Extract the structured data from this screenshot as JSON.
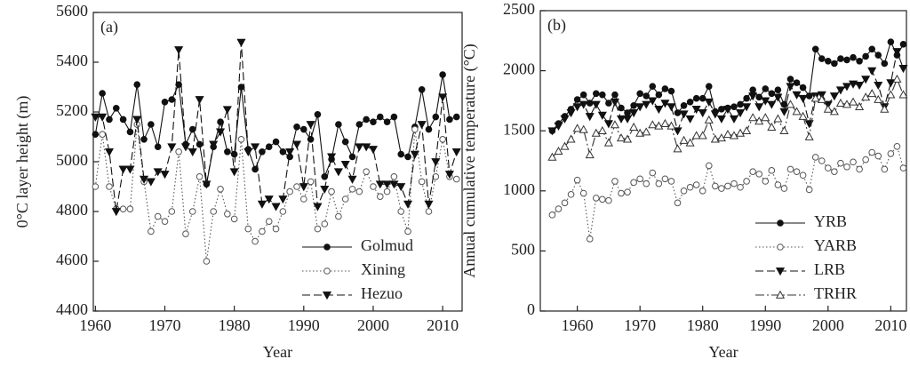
{
  "chart_data": [
    {
      "type": "line",
      "annotation": "(a)",
      "xlabel": "Year",
      "ylabel": "0°C layer height (m)",
      "x": [
        1960,
        1961,
        1962,
        1963,
        1964,
        1965,
        1966,
        1967,
        1968,
        1969,
        1970,
        1971,
        1972,
        1973,
        1974,
        1975,
        1976,
        1977,
        1978,
        1979,
        1980,
        1981,
        1982,
        1983,
        1984,
        1985,
        1986,
        1987,
        1988,
        1989,
        1990,
        1991,
        1992,
        1993,
        1994,
        1995,
        1996,
        1997,
        1998,
        1999,
        2000,
        2001,
        2002,
        2003,
        2004,
        2005,
        2006,
        2007,
        2008,
        2009,
        2010,
        2011,
        2012
      ],
      "series": [
        {
          "name": "Golmud",
          "color": "#111111",
          "marker": "circle-filled",
          "line_style": "solid",
          "values": [
            5110,
            5275,
            5170,
            5215,
            5170,
            5120,
            5310,
            5090,
            5150,
            5060,
            5240,
            5250,
            5310,
            5070,
            5130,
            5070,
            4910,
            5060,
            5160,
            5040,
            5030,
            5300,
            5050,
            4970,
            5040,
            5060,
            5080,
            5040,
            5020,
            5140,
            5130,
            5090,
            5190,
            4940,
            5010,
            5150,
            5080,
            5020,
            5150,
            5170,
            5160,
            5180,
            5160,
            5180,
            5030,
            5020,
            5140,
            5290,
            5130,
            5180,
            5350,
            5170,
            5180
          ]
        },
        {
          "name": "Xining",
          "color": "#555555",
          "marker": "circle-open",
          "line_style": "dotted",
          "values": [
            4900,
            5110,
            4900,
            4810,
            4810,
            4810,
            5150,
            4920,
            4720,
            4780,
            4760,
            4800,
            5040,
            4710,
            4800,
            4940,
            4600,
            4800,
            4890,
            4790,
            4770,
            5090,
            4730,
            4680,
            4720,
            4760,
            4730,
            4800,
            4880,
            4900,
            4850,
            4920,
            4730,
            4750,
            4880,
            4780,
            4850,
            4890,
            4880,
            4960,
            4900,
            4860,
            4880,
            4940,
            4800,
            4720,
            5130,
            4920,
            4800,
            4940,
            5090,
            4940,
            4930
          ]
        },
        {
          "name": "Hezuo",
          "color": "#111111",
          "marker": "triangle-down-filled",
          "line_style": "dashed",
          "values": [
            5180,
            5180,
            5040,
            4800,
            4970,
            4970,
            5170,
            4930,
            4920,
            4960,
            4950,
            5060,
            5450,
            5060,
            5040,
            5250,
            4910,
            5070,
            5120,
            5210,
            4960,
            5480,
            5040,
            5060,
            4830,
            4850,
            4820,
            4850,
            5040,
            5070,
            4900,
            5150,
            4820,
            4890,
            5020,
            4960,
            4990,
            4930,
            5060,
            5060,
            5050,
            4910,
            4910,
            4910,
            4900,
            4830,
            5030,
            5150,
            4830,
            5000,
            5260,
            4950,
            5040
          ]
        }
      ],
      "xlim": [
        1959.7,
        2012.8
      ],
      "ylim": [
        4400,
        5600
      ],
      "xticks": [
        1960,
        1970,
        1980,
        1990,
        2000,
        2010
      ],
      "yticks": [
        4400,
        4600,
        4800,
        5000,
        5200,
        5400,
        5600
      ],
      "legend": "lower right"
    },
    {
      "type": "line",
      "annotation": "(b)",
      "xlabel": "Year",
      "ylabel": "Annual cumulative temperature (°C)",
      "x": [
        1956,
        1957,
        1958,
        1959,
        1960,
        1961,
        1962,
        1963,
        1964,
        1965,
        1966,
        1967,
        1968,
        1969,
        1970,
        1971,
        1972,
        1973,
        1974,
        1975,
        1976,
        1977,
        1978,
        1979,
        1980,
        1981,
        1982,
        1983,
        1984,
        1985,
        1986,
        1987,
        1988,
        1989,
        1990,
        1991,
        1992,
        1993,
        1994,
        1995,
        1996,
        1997,
        1998,
        1999,
        2000,
        2001,
        2002,
        2003,
        2004,
        2005,
        2006,
        2007,
        2008,
        2009,
        2010,
        2011,
        2012
      ],
      "series": [
        {
          "name": "YRB",
          "color": "#111111",
          "marker": "circle-filled",
          "line_style": "solid",
          "values": [
            1500,
            1560,
            1620,
            1680,
            1760,
            1800,
            1730,
            1810,
            1800,
            1730,
            1800,
            1690,
            1650,
            1710,
            1810,
            1790,
            1870,
            1800,
            1850,
            1830,
            1650,
            1710,
            1740,
            1770,
            1770,
            1870,
            1660,
            1680,
            1690,
            1700,
            1720,
            1770,
            1840,
            1780,
            1850,
            1810,
            1840,
            1720,
            1930,
            1900,
            1860,
            1790,
            2180,
            2100,
            2080,
            2060,
            2100,
            2090,
            2110,
            2080,
            2120,
            2180,
            2130,
            2060,
            2240,
            2130,
            2220
          ]
        },
        {
          "name": "YARB",
          "color": "#555555",
          "marker": "circle-open",
          "line_style": "dotted",
          "values": [
            800,
            850,
            900,
            970,
            1090,
            980,
            600,
            940,
            930,
            920,
            1080,
            980,
            990,
            1070,
            1100,
            1060,
            1150,
            1060,
            1100,
            1080,
            900,
            1000,
            1030,
            1050,
            1000,
            1210,
            1040,
            1020,
            1040,
            1060,
            1030,
            1080,
            1160,
            1140,
            1080,
            1170,
            1050,
            1020,
            1180,
            1160,
            1130,
            1010,
            1280,
            1250,
            1190,
            1160,
            1230,
            1200,
            1240,
            1180,
            1260,
            1320,
            1290,
            1180,
            1310,
            1370,
            1190
          ]
        },
        {
          "name": "LRB",
          "color": "#111111",
          "marker": "triangle-down-filled",
          "line_style": "dashed",
          "values": [
            1500,
            1540,
            1600,
            1650,
            1700,
            1720,
            1620,
            1720,
            1630,
            1560,
            1740,
            1600,
            1600,
            1650,
            1700,
            1720,
            1750,
            1680,
            1730,
            1700,
            1500,
            1640,
            1600,
            1680,
            1650,
            1740,
            1640,
            1600,
            1680,
            1600,
            1650,
            1700,
            1790,
            1700,
            1750,
            1720,
            1780,
            1660,
            1870,
            1800,
            1770,
            1560,
            1790,
            1800,
            1720,
            1790,
            1840,
            1870,
            1890,
            1880,
            1930,
            2000,
            1880,
            1700,
            1900,
            2160,
            2020
          ]
        },
        {
          "name": "TRHR",
          "color": "#333333",
          "marker": "triangle-up-open",
          "line_style": "dashdot",
          "values": [
            1280,
            1330,
            1370,
            1430,
            1520,
            1510,
            1300,
            1480,
            1500,
            1400,
            1550,
            1440,
            1430,
            1530,
            1480,
            1490,
            1550,
            1540,
            1560,
            1540,
            1350,
            1420,
            1400,
            1460,
            1460,
            1590,
            1430,
            1440,
            1470,
            1460,
            1480,
            1500,
            1610,
            1580,
            1610,
            1530,
            1600,
            1500,
            1720,
            1660,
            1620,
            1450,
            1770,
            1760,
            1680,
            1660,
            1730,
            1720,
            1740,
            1700,
            1780,
            1810,
            1760,
            1680,
            1800,
            1930,
            1800
          ]
        }
      ],
      "xlim": [
        1954.1,
        2012.5
      ],
      "ylim": [
        0,
        2500
      ],
      "xticks": [
        1960,
        1970,
        1980,
        1990,
        2000,
        2010
      ],
      "yticks": [
        0,
        500,
        1000,
        1500,
        2000,
        2500
      ],
      "legend": "lower right"
    }
  ]
}
